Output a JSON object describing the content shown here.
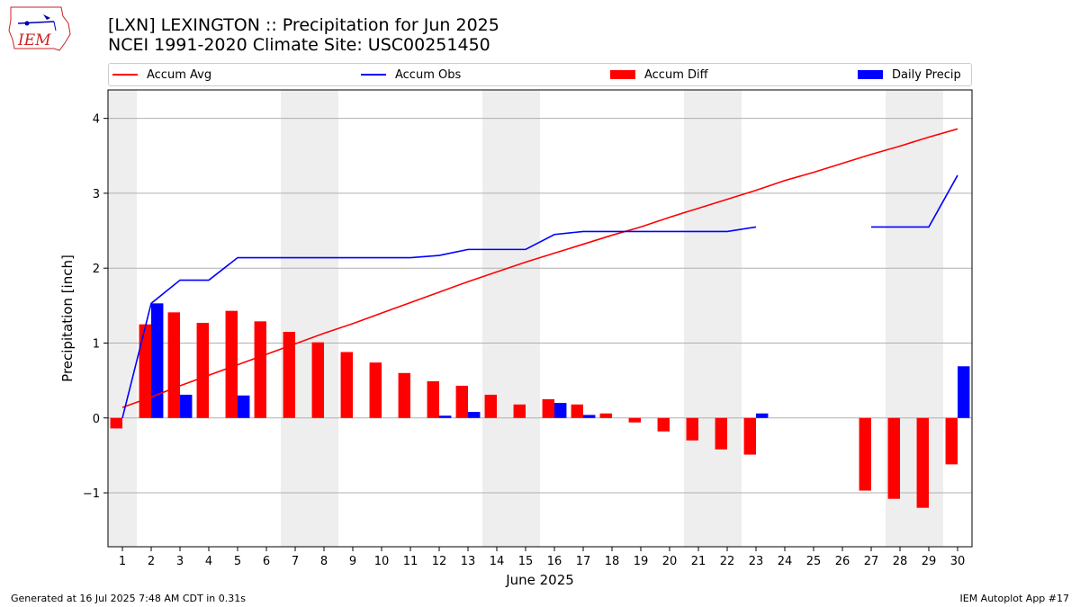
{
  "title_line1": "[LXN] LEXINGTON :: Precipitation for Jun 2025",
  "title_line2": "NCEI 1991-2020 Climate Site: USC00251450",
  "logo_text": "IEM",
  "footer_left": "Generated at 16 Jul 2025 7:48 AM CDT in 0.31s",
  "footer_right": "IEM Autoplot App #17",
  "legend": [
    {
      "label": "Accum Avg",
      "kind": "line",
      "color": "#ff0000"
    },
    {
      "label": "Accum Obs",
      "kind": "line",
      "color": "#0000ff"
    },
    {
      "label": "Accum Diff",
      "kind": "patch",
      "color": "#ff0000"
    },
    {
      "label": "Daily Precip",
      "kind": "patch",
      "color": "#0000ff"
    }
  ],
  "chart_data": {
    "type": "bar",
    "xlabel": "June 2025",
    "ylabel": "Precipitation [inch]",
    "x": [
      1,
      2,
      3,
      4,
      5,
      6,
      7,
      8,
      9,
      10,
      11,
      12,
      13,
      14,
      15,
      16,
      17,
      18,
      19,
      20,
      21,
      22,
      23,
      24,
      25,
      26,
      27,
      28,
      29,
      30
    ],
    "x_tick_labels": [
      "1",
      "2",
      "3",
      "4",
      "5",
      "6",
      "7",
      "8",
      "9",
      "10",
      "11",
      "12",
      "13",
      "14",
      "15",
      "16",
      "17",
      "18",
      "19",
      "20",
      "21",
      "22",
      "23",
      "24",
      "25",
      "26",
      "27",
      "28",
      "29",
      "30"
    ],
    "ylim": [
      -1.72,
      4.38
    ],
    "y_ticks": [
      -1,
      0,
      1,
      2,
      3,
      4
    ],
    "y_tick_labels": [
      "−1",
      "0",
      "1",
      "2",
      "3",
      "4"
    ],
    "grid": "horizontal",
    "weekend_shading": [
      1,
      7,
      8,
      14,
      15,
      21,
      22,
      28,
      29
    ],
    "shading_color": "#eeeeee",
    "series": [
      {
        "name": "Accum Avg",
        "type": "line",
        "color": "#ff0000",
        "values": [
          0.14,
          0.28,
          0.43,
          0.57,
          0.71,
          0.85,
          0.99,
          1.13,
          1.26,
          1.4,
          1.54,
          1.68,
          1.82,
          1.95,
          2.08,
          2.2,
          2.32,
          2.44,
          2.55,
          2.68,
          2.8,
          2.92,
          3.04,
          3.17,
          3.28,
          3.4,
          3.52,
          3.63,
          3.75,
          3.86
        ]
      },
      {
        "name": "Accum Obs",
        "type": "line",
        "color": "#0000ff",
        "values": [
          0.0,
          1.53,
          1.84,
          1.84,
          2.14,
          2.14,
          2.14,
          2.14,
          2.14,
          2.14,
          2.14,
          2.17,
          2.25,
          2.25,
          2.25,
          2.45,
          2.49,
          2.49,
          2.49,
          2.49,
          2.49,
          2.49,
          2.55,
          null,
          null,
          null,
          2.55,
          2.55,
          2.55,
          3.24
        ]
      },
      {
        "name": "Accum Diff",
        "type": "bar",
        "color": "#ff0000",
        "values": [
          -0.14,
          1.25,
          1.41,
          1.27,
          1.43,
          1.29,
          1.15,
          1.01,
          0.88,
          0.74,
          0.6,
          0.49,
          0.43,
          0.31,
          0.18,
          0.25,
          0.18,
          0.06,
          -0.06,
          -0.18,
          -0.3,
          -0.42,
          -0.49,
          null,
          null,
          null,
          -0.97,
          -1.08,
          -1.2,
          -0.62
        ]
      },
      {
        "name": "Daily Precip",
        "type": "bar",
        "color": "#0000ff",
        "values": [
          0,
          1.53,
          0.31,
          0,
          0.3,
          0,
          0,
          0,
          0,
          0,
          0,
          0.03,
          0.08,
          0,
          0,
          0.2,
          0.04,
          0,
          0,
          0,
          0,
          0,
          0.06,
          0,
          0,
          0,
          0,
          0,
          0,
          0.69
        ]
      }
    ]
  }
}
